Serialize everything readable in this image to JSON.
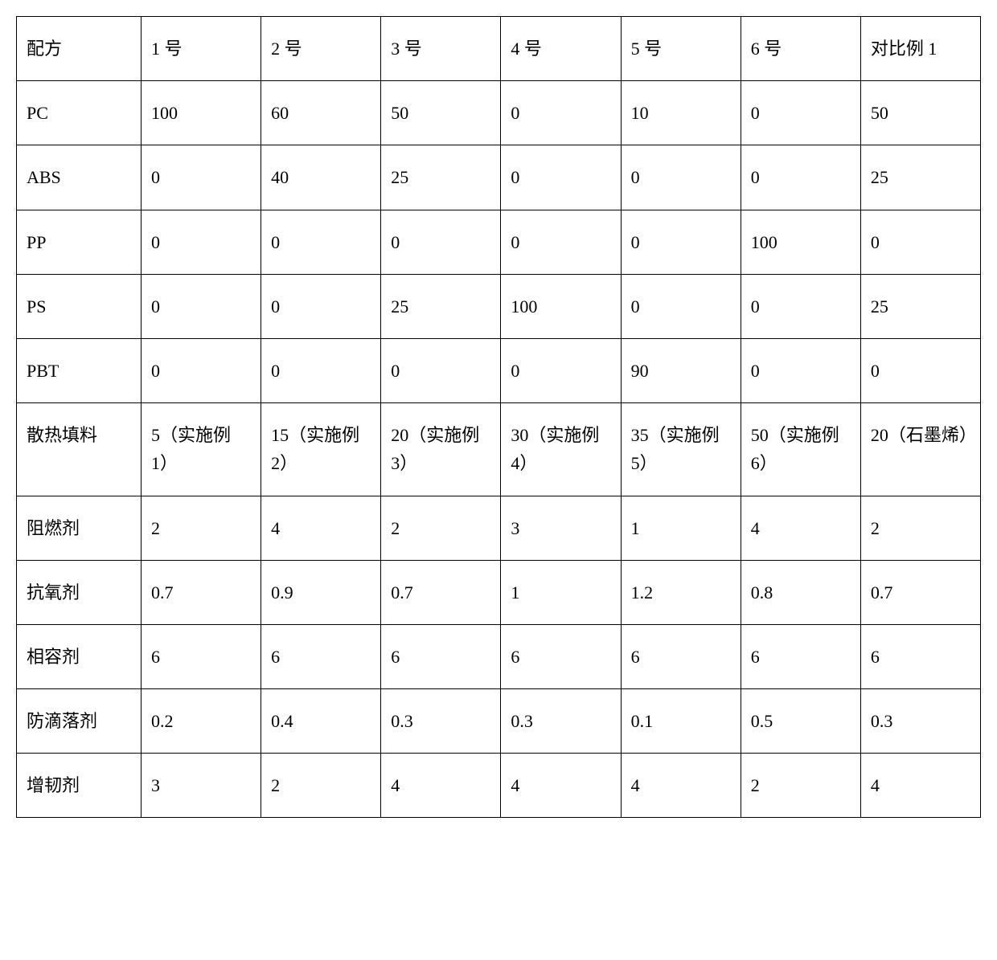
{
  "table": {
    "columns": [
      "配方",
      "1 号",
      "2 号",
      "3 号",
      "4 号",
      "5 号",
      "6 号",
      "对比例 1"
    ],
    "rows": [
      [
        "PC",
        "100",
        "60",
        "50",
        "0",
        "10",
        "0",
        "50"
      ],
      [
        "ABS",
        "0",
        "40",
        "25",
        "0",
        "0",
        "0",
        "25"
      ],
      [
        "PP",
        "0",
        "0",
        "0",
        "0",
        "0",
        "100",
        "0"
      ],
      [
        "PS",
        "0",
        "0",
        "25",
        "100",
        "0",
        "0",
        "25"
      ],
      [
        "PBT",
        "0",
        "0",
        "0",
        "0",
        "90",
        "0",
        "0"
      ],
      [
        "散热填料",
        "5（实施例 1）",
        "15（实施例 2）",
        "20（实施例 3）",
        "30（实施例 4）",
        "35（实施例 5）",
        "50（实施例 6）",
        "20（石墨烯）"
      ],
      [
        "阻燃剂",
        "2",
        "4",
        "2",
        "3",
        "1",
        "4",
        "2"
      ],
      [
        "抗氧剂",
        "0.7",
        "0.9",
        "0.7",
        "1",
        "1.2",
        "0.8",
        "0.7"
      ],
      [
        "相容剂",
        "6",
        "6",
        "6",
        "6",
        "6",
        "6",
        "6"
      ],
      [
        "防滴落剂",
        "0.2",
        "0.4",
        "0.3",
        "0.3",
        "0.1",
        "0.5",
        "0.3"
      ],
      [
        "增韧剂",
        "3",
        "2",
        "4",
        "4",
        "4",
        "2",
        "4"
      ]
    ],
    "border_color": "#000000",
    "text_color": "#000000",
    "background_color": "#ffffff",
    "fontsize": 22,
    "font_family": "SimSun"
  }
}
